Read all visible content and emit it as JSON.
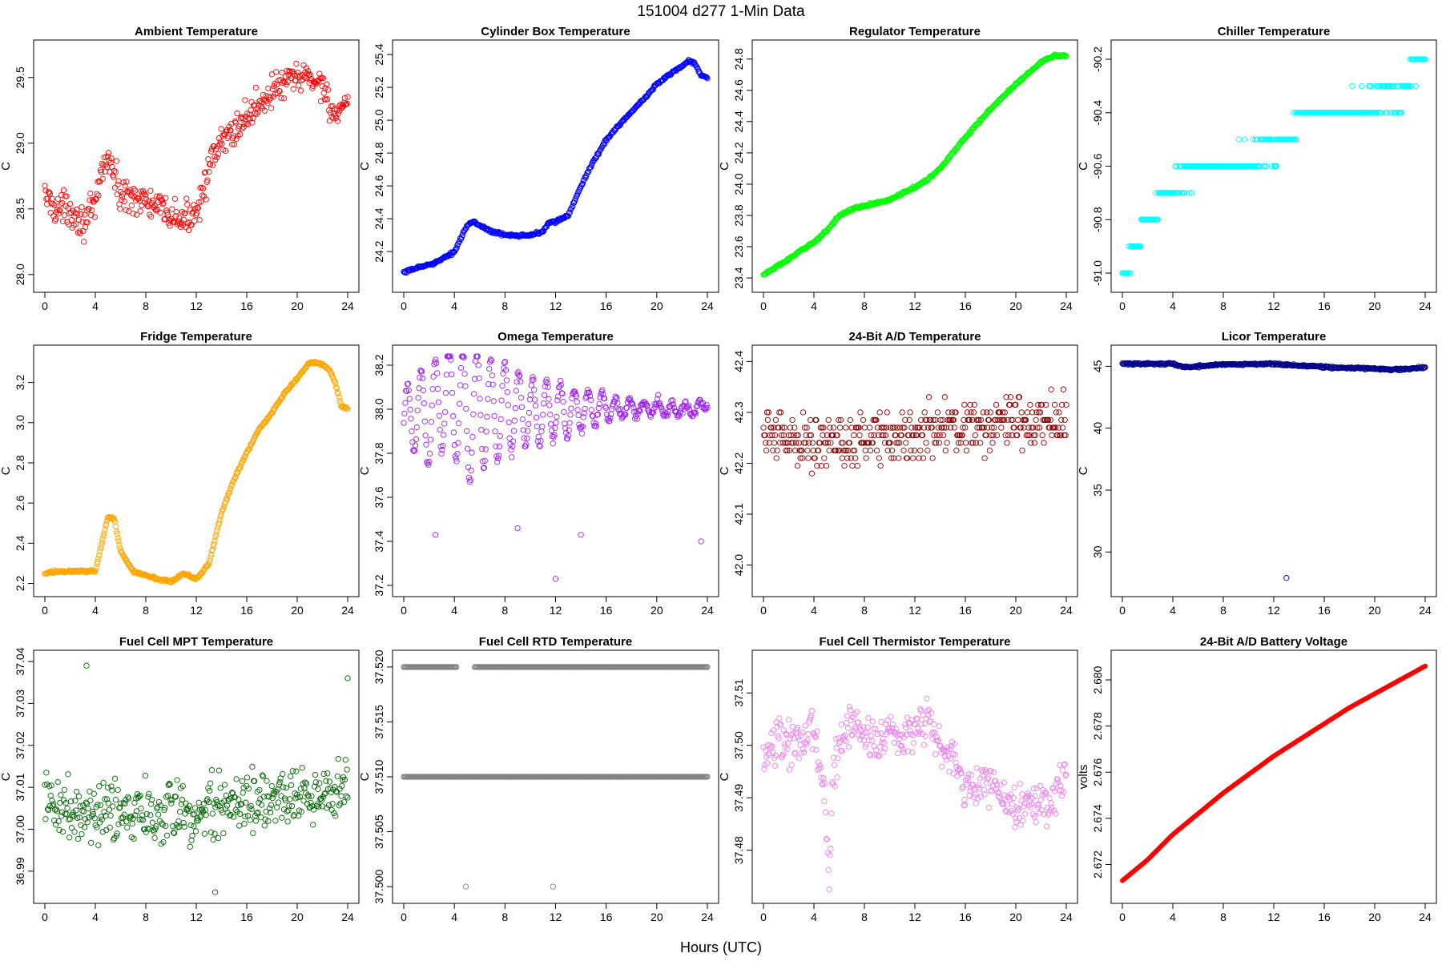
{
  "figure": {
    "title": "151004    d277    1-Min Data",
    "xlabel": "Hours (UTC)"
  },
  "chart_data": [
    {
      "type": "scatter",
      "id": "ambient",
      "title": "Ambient Temperature",
      "ylabel": "C",
      "color": "#ff0000",
      "xlim": [
        0,
        24
      ],
      "ylim": [
        27.95,
        29.7
      ],
      "xticks": [
        0,
        4,
        8,
        12,
        16,
        20,
        24
      ],
      "yticks": [
        28.0,
        28.5,
        29.0,
        29.5
      ],
      "ytick_labels": [
        "28.0",
        "28.5",
        "29.0",
        "29.5"
      ],
      "x": [
        0,
        1,
        2,
        3,
        4,
        4.5,
        5,
        6,
        7,
        8,
        9,
        10,
        11,
        12,
        13,
        14,
        15,
        16,
        17,
        18,
        19,
        20,
        21,
        22,
        23,
        24
      ],
      "y": [
        28.6,
        28.5,
        28.5,
        28.4,
        28.5,
        28.8,
        28.9,
        28.6,
        28.6,
        28.55,
        28.5,
        28.45,
        28.4,
        28.5,
        28.8,
        29.0,
        29.1,
        29.2,
        29.3,
        29.4,
        29.45,
        29.5,
        29.5,
        29.45,
        29.2,
        29.25
      ],
      "noise": 0.12
    },
    {
      "type": "scatter",
      "id": "cylinder",
      "title": "Cylinder Box Temperature",
      "ylabel": "C",
      "color": "#0000ff",
      "xlim": [
        0,
        24
      ],
      "ylim": [
        24.02,
        25.42
      ],
      "xticks": [
        0,
        4,
        8,
        12,
        16,
        20,
        24
      ],
      "yticks": [
        24.2,
        24.4,
        24.6,
        24.8,
        25.0,
        25.2,
        25.4
      ],
      "ytick_labels": [
        "24.2",
        "24.4",
        "24.6",
        "24.8",
        "25.0",
        "25.2",
        "25.4"
      ],
      "x": [
        0,
        1,
        2,
        3,
        4,
        4.5,
        5,
        5.5,
        6,
        7,
        8,
        9,
        10,
        11,
        11.5,
        12,
        13,
        14,
        15,
        16,
        17,
        18,
        19,
        20,
        21,
        22,
        22.5,
        23,
        23.5,
        24
      ],
      "y": [
        24.07,
        24.1,
        24.12,
        24.15,
        24.2,
        24.28,
        24.36,
        24.38,
        24.36,
        24.32,
        24.3,
        24.3,
        24.3,
        24.32,
        24.38,
        24.38,
        24.42,
        24.6,
        24.75,
        24.88,
        24.97,
        25.05,
        25.13,
        25.22,
        25.28,
        25.33,
        25.36,
        25.35,
        25.27,
        25.26
      ],
      "noise": 0.008
    },
    {
      "type": "scatter",
      "id": "regulator",
      "title": "Regulator Temperature",
      "ylabel": "C",
      "color": "#00ff00",
      "xlim": [
        0,
        24
      ],
      "ylim": [
        23.38,
        24.85
      ],
      "xticks": [
        0,
        4,
        8,
        12,
        16,
        20,
        24
      ],
      "yticks": [
        23.4,
        23.6,
        23.8,
        24.0,
        24.2,
        24.4,
        24.6,
        24.8
      ],
      "ytick_labels": [
        "23.4",
        "23.6",
        "23.8",
        "24.0",
        "24.2",
        "24.4",
        "24.6",
        "24.8"
      ],
      "x": [
        0,
        2,
        4,
        5,
        6,
        7,
        8,
        10,
        12,
        13,
        14,
        16,
        18,
        20,
        22,
        23,
        24
      ],
      "y": [
        23.42,
        23.52,
        23.63,
        23.7,
        23.8,
        23.84,
        23.86,
        23.9,
        23.98,
        24.03,
        24.1,
        24.3,
        24.48,
        24.64,
        24.78,
        24.82,
        24.82
      ],
      "noise": 0.008
    },
    {
      "type": "scatter",
      "id": "chiller",
      "title": "Chiller Temperature",
      "ylabel": "C",
      "color": "#00ffff",
      "xlim": [
        0,
        24
      ],
      "ylim": [
        -91.03,
        -90.17
      ],
      "xticks": [
        0,
        4,
        8,
        12,
        16,
        20,
        24
      ],
      "yticks": [
        -91.0,
        -90.8,
        -90.6,
        -90.4,
        -90.2
      ],
      "ytick_labels": [
        "-91.0",
        "-90.8",
        "-90.6",
        "-90.4",
        "-90.2"
      ],
      "x": [
        0,
        0.5,
        1,
        2,
        3,
        4,
        6,
        8,
        10,
        12,
        13,
        14,
        16,
        18,
        20,
        22,
        23,
        24
      ],
      "y": [
        -91.0,
        -90.96,
        -90.9,
        -90.8,
        -90.74,
        -90.66,
        -90.62,
        -90.58,
        -90.56,
        -90.55,
        -90.52,
        -90.42,
        -90.38,
        -90.38,
        -90.36,
        -90.35,
        -90.22,
        -90.22
      ],
      "noise": 0.03,
      "quantize": 0.1
    },
    {
      "type": "scatter",
      "id": "fridge",
      "title": "Fridge Temperature",
      "ylabel": "C",
      "color": "#ffa500",
      "xlim": [
        0,
        24
      ],
      "ylim": [
        2.19,
        3.33
      ],
      "xticks": [
        0,
        4,
        8,
        12,
        16,
        20,
        24
      ],
      "yticks": [
        2.2,
        2.4,
        2.6,
        2.8,
        3.0,
        3.2
      ],
      "ytick_labels": [
        "2.2",
        "2.4",
        "2.6",
        "2.8",
        "3.0",
        "3.2"
      ],
      "x": [
        0,
        1,
        2,
        3,
        4,
        4.5,
        5,
        5.5,
        6,
        7,
        8,
        9,
        10,
        11,
        12,
        13,
        14,
        15,
        16,
        17,
        18,
        19,
        20,
        21,
        22,
        22.5,
        23,
        23.5,
        24
      ],
      "y": [
        2.25,
        2.26,
        2.26,
        2.26,
        2.26,
        2.4,
        2.53,
        2.52,
        2.36,
        2.26,
        2.24,
        2.22,
        2.21,
        2.25,
        2.22,
        2.3,
        2.55,
        2.72,
        2.85,
        2.97,
        3.05,
        3.15,
        3.22,
        3.3,
        3.29,
        3.27,
        3.2,
        3.08,
        3.07
      ],
      "noise": 0.006
    },
    {
      "type": "scatter",
      "id": "omega",
      "title": "Omega Temperature",
      "ylabel": "C",
      "color": "#a020f0",
      "xlim": [
        0,
        24
      ],
      "ylim": [
        37.2,
        38.24
      ],
      "xticks": [
        0,
        4,
        8,
        12,
        16,
        20,
        24
      ],
      "yticks": [
        37.2,
        37.4,
        37.6,
        37.8,
        38.0,
        38.2
      ],
      "ytick_labels": [
        "37.2",
        "37.4",
        "37.6",
        "37.8",
        "38.0",
        "38.2"
      ],
      "x": [
        0,
        1,
        2,
        3,
        4,
        5,
        6,
        7,
        8,
        9,
        10,
        11,
        12,
        13,
        14,
        15,
        16,
        17,
        18,
        19,
        20,
        21,
        22,
        23,
        24
      ],
      "y": [
        37.92,
        38.0,
        37.95,
        38.05,
        38.05,
        37.95,
        38.0,
        37.98,
        38.0,
        38.0,
        37.98,
        37.98,
        38.0,
        37.99,
        38.0,
        38.0,
        38.01,
        38.0,
        38.01,
        38.0,
        38.01,
        38.0,
        38.0,
        38.0,
        38.02
      ],
      "noise": 0.02,
      "oscillation": {
        "amplitude": [
          0.16,
          0.3,
          0.15,
          0.1,
          0.04,
          0.02
        ],
        "at": [
          0,
          5,
          10,
          14,
          17,
          24
        ],
        "period": 1.1
      },
      "outliers": [
        [
          2.5,
          37.43
        ],
        [
          9,
          37.46
        ],
        [
          12,
          37.23
        ],
        [
          14,
          37.43
        ],
        [
          23.5,
          37.4
        ]
      ]
    },
    {
      "type": "scatter",
      "id": "ad24",
      "title": "24-Bit A/D Temperature",
      "ylabel": "C",
      "color": "#8b0000",
      "xlim": [
        0,
        24
      ],
      "ylim": [
        41.96,
        42.41
      ],
      "xticks": [
        0,
        4,
        8,
        12,
        16,
        20,
        24
      ],
      "yticks": [
        42.0,
        42.1,
        42.2,
        42.3,
        42.4
      ],
      "ytick_labels": [
        "42.0",
        "42.1",
        "42.2",
        "42.3",
        "42.4"
      ],
      "x": [
        0,
        4,
        8,
        12,
        16,
        20,
        24
      ],
      "y": [
        42.26,
        42.24,
        42.25,
        42.26,
        42.27,
        42.28,
        42.28
      ],
      "noise": 0.05,
      "quantize": 0.015
    },
    {
      "type": "scatter",
      "id": "licor",
      "title": "Licor Temperature",
      "ylabel": "C",
      "color": "#00008b",
      "xlim": [
        0,
        24
      ],
      "ylim": [
        27.3,
        45.8
      ],
      "xticks": [
        0,
        4,
        8,
        12,
        16,
        20,
        24
      ],
      "yticks": [
        30,
        35,
        40,
        45
      ],
      "ytick_labels": [
        "30",
        "35",
        "40",
        "45"
      ],
      "x": [
        0,
        4,
        5,
        6,
        8,
        12,
        14,
        16,
        18,
        20,
        22,
        24
      ],
      "y": [
        45.2,
        45.2,
        44.9,
        45.0,
        45.15,
        45.2,
        45.05,
        44.95,
        44.85,
        44.8,
        44.75,
        44.9
      ],
      "noise": 0.08,
      "outliers": [
        [
          13,
          27.9
        ]
      ]
    },
    {
      "type": "scatter",
      "id": "fcmpt",
      "title": "Fuel Cell MPT Temperature",
      "ylabel": "C",
      "color": "#006400",
      "xlim": [
        0,
        24
      ],
      "ylim": [
        36.985,
        37.04
      ],
      "xticks": [
        0,
        4,
        8,
        12,
        16,
        20,
        24
      ],
      "yticks": [
        36.99,
        37.0,
        37.01,
        37.02,
        37.03,
        37.04
      ],
      "ytick_labels": [
        "36.99",
        "37.00",
        "37.01",
        "37.02",
        "37.03",
        "37.04"
      ],
      "x": [
        0,
        4,
        8,
        12,
        16,
        20,
        24
      ],
      "y": [
        37.006,
        37.004,
        37.004,
        37.004,
        37.006,
        37.008,
        37.01
      ],
      "noise": 0.007,
      "outliers": [
        [
          3.3,
          37.039
        ],
        [
          13.5,
          36.985
        ],
        [
          24,
          37.036
        ]
      ]
    },
    {
      "type": "scatter",
      "id": "fcrtd",
      "title": "Fuel Cell RTD Temperature",
      "ylabel": "C",
      "color": "#808080",
      "xlim": [
        0,
        24
      ],
      "ylim": [
        37.4995,
        37.5205
      ],
      "xticks": [
        0,
        4,
        8,
        12,
        16,
        20,
        24
      ],
      "yticks": [
        37.5,
        37.505,
        37.51,
        37.515,
        37.52
      ],
      "ytick_labels": [
        "37.500",
        "37.505",
        "37.510",
        "37.515",
        "37.520"
      ],
      "levels": [
        37.52,
        37.51
      ],
      "outliers": [
        [
          4.9,
          37.5
        ],
        [
          11.8,
          37.5
        ]
      ]
    },
    {
      "type": "scatter",
      "id": "fcthermistor",
      "title": "Fuel Cell Thermistor Temperature",
      "ylabel": "C",
      "color": "#ee82ee",
      "xlim": [
        0,
        24
      ],
      "ylim": [
        37.472,
        37.516
      ],
      "xticks": [
        0,
        4,
        8,
        12,
        16,
        20,
        24
      ],
      "yticks": [
        37.48,
        37.49,
        37.5,
        37.51
      ],
      "ytick_labels": [
        "37.48",
        "37.49",
        "37.50",
        "37.51"
      ],
      "x": [
        0,
        1,
        2,
        3,
        4,
        5,
        6,
        7,
        8,
        9,
        10,
        11,
        12,
        13,
        14,
        15,
        16,
        17,
        18,
        19,
        20,
        21,
        22,
        23,
        24
      ],
      "y": [
        37.495,
        37.502,
        37.5,
        37.5,
        37.503,
        37.49,
        37.5,
        37.505,
        37.502,
        37.5,
        37.503,
        37.5,
        37.503,
        37.505,
        37.5,
        37.498,
        37.492,
        37.492,
        37.493,
        37.49,
        37.488,
        37.489,
        37.488,
        37.49,
        37.496
      ],
      "noise": 0.004,
      "dip": {
        "at": 5.2,
        "depth": 0.016
      }
    },
    {
      "type": "line",
      "id": "battery",
      "title": "24-Bit A/D Battery Voltage",
      "ylabel": "volts",
      "color": "#ff0000",
      "xlim": [
        0,
        24
      ],
      "ylim": [
        2.6708,
        2.6808
      ],
      "xticks": [
        0,
        4,
        8,
        12,
        16,
        20,
        24
      ],
      "yticks": [
        2.672,
        2.674,
        2.676,
        2.678,
        2.68
      ],
      "ytick_labels": [
        "2.672",
        "2.674",
        "2.676",
        "2.678",
        "2.680"
      ],
      "x": [
        0,
        2,
        4,
        6,
        8,
        10,
        12,
        14,
        16,
        18,
        20,
        22,
        24
      ],
      "y": [
        2.6713,
        2.6722,
        2.6733,
        2.6742,
        2.6751,
        2.6759,
        2.6767,
        2.6774,
        2.6781,
        2.6788,
        2.6794,
        2.68,
        2.6806
      ]
    }
  ]
}
